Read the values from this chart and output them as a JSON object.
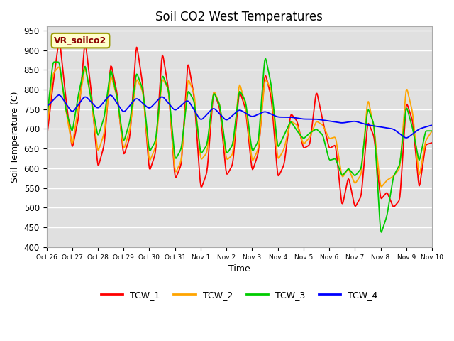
{
  "title": "Soil CO2 West Temperatures",
  "xlabel": "Time",
  "ylabel": "Soil Temperature (C)",
  "ylim": [
    400,
    960
  ],
  "yticks": [
    400,
    450,
    500,
    550,
    600,
    650,
    700,
    750,
    800,
    850,
    900,
    950
  ],
  "annotation_text": "VR_soilco2",
  "plot_bg_color": "#e0e0e0",
  "line_colors": {
    "TCW_1": "#ff0000",
    "TCW_2": "#ffa500",
    "TCW_3": "#00cc00",
    "TCW_4": "#0000ff"
  },
  "xtick_labels": [
    "Oct 26",
    "Oct 27",
    "Oct 28",
    "Oct 29",
    "Oct 30",
    "Oct 31",
    "Nov 1",
    "Nov 2",
    "Nov 3",
    "Nov 4",
    "Nov 5",
    "Nov 6",
    "Nov 7",
    "Nov 8",
    "Nov 9",
    "Nov 10"
  ],
  "legend_labels": [
    "TCW_1",
    "TCW_2",
    "TCW_3",
    "TCW_4"
  ]
}
